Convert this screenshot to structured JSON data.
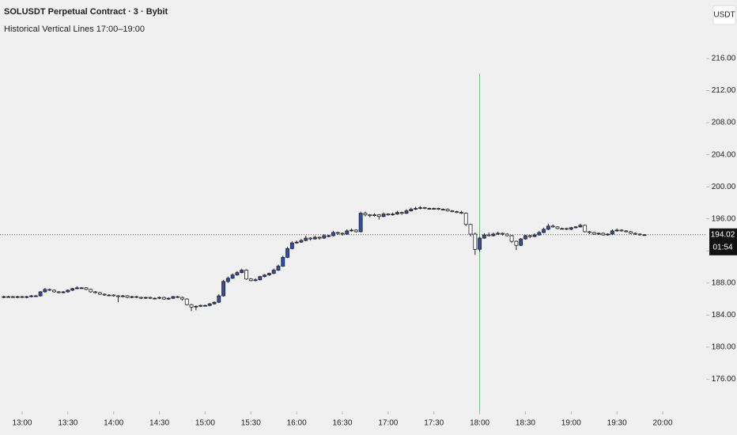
{
  "chart_data": {
    "type": "candlestick",
    "title": "SOLUSDT Perpetual Contract · 3 · Bybit",
    "subtitle": "Historical Vertical Lines 17:00–19:00",
    "currency": "USDT",
    "last_price": 194.02,
    "countdown": "01:54",
    "up_color": "#2e4eb5",
    "down_color": "#ffffff",
    "wick_color": "#222222",
    "vertical_line": {
      "x": 1080,
      "color": "#6dbb7a"
    },
    "xlim": [
      765.5,
      1228.5
    ],
    "xticks": [
      {
        "value": 780,
        "label": "13:00"
      },
      {
        "value": 810,
        "label": "13:30"
      },
      {
        "value": 840,
        "label": "14:00"
      },
      {
        "value": 870,
        "label": "14:30"
      },
      {
        "value": 900,
        "label": "15:00"
      },
      {
        "value": 930,
        "label": "15:30"
      },
      {
        "value": 960,
        "label": "16:00"
      },
      {
        "value": 990,
        "label": "16:30"
      },
      {
        "value": 1020,
        "label": "17:00"
      },
      {
        "value": 1050,
        "label": "17:30"
      },
      {
        "value": 1080,
        "label": "18:00"
      },
      {
        "value": 1110,
        "label": "18:30"
      },
      {
        "value": 1140,
        "label": "19:00"
      },
      {
        "value": 1170,
        "label": "19:30"
      },
      {
        "value": 1200,
        "label": "20:00"
      }
    ],
    "ylim": [
      172,
      223.3
    ],
    "yticks": [
      {
        "value": 176,
        "label": "176.00"
      },
      {
        "value": 180,
        "label": "180.00"
      },
      {
        "value": 184,
        "label": "184.00"
      },
      {
        "value": 188,
        "label": "188.00"
      },
      {
        "value": 192,
        "label": "192.00"
      },
      {
        "value": 196,
        "label": "196.00"
      },
      {
        "value": 200,
        "label": "200.00"
      },
      {
        "value": 204,
        "label": "204.00"
      },
      {
        "value": 208,
        "label": "208.00"
      },
      {
        "value": 212,
        "label": "212.00"
      },
      {
        "value": 216,
        "label": "216.00"
      }
    ],
    "x": [
      768,
      771,
      774,
      777,
      780,
      783,
      786,
      789,
      792,
      795,
      798,
      801,
      804,
      807,
      810,
      813,
      816,
      819,
      822,
      825,
      828,
      831,
      834,
      837,
      840,
      843,
      846,
      849,
      852,
      855,
      858,
      861,
      864,
      867,
      870,
      873,
      876,
      879,
      882,
      885,
      888,
      891,
      894,
      897,
      900,
      903,
      906,
      909,
      912,
      915,
      918,
      921,
      924,
      927,
      930,
      933,
      936,
      939,
      942,
      945,
      948,
      951,
      954,
      957,
      960,
      963,
      966,
      969,
      972,
      975,
      978,
      981,
      984,
      987,
      990,
      993,
      996,
      999,
      1002,
      1005,
      1008,
      1011,
      1014,
      1017,
      1020,
      1023,
      1026,
      1029,
      1032,
      1035,
      1038,
      1041,
      1044,
      1047,
      1050,
      1053,
      1056,
      1059,
      1062,
      1065,
      1068,
      1071,
      1074,
      1077,
      1080,
      1083,
      1086,
      1089,
      1092,
      1095,
      1098,
      1101,
      1104,
      1107,
      1110,
      1113,
      1116,
      1119,
      1122,
      1125,
      1128,
      1131,
      1134,
      1137,
      1140,
      1143,
      1146,
      1149,
      1152,
      1155,
      1158,
      1161,
      1164,
      1167,
      1170,
      1173,
      1176,
      1179,
      1182,
      1185,
      1188
    ],
    "ohlc": [
      [
        186.2,
        186.4,
        186.1,
        186.3
      ],
      [
        186.3,
        186.4,
        186.2,
        186.3
      ],
      [
        186.3,
        186.4,
        186.1,
        186.2
      ],
      [
        186.2,
        186.4,
        186.1,
        186.3
      ],
      [
        186.3,
        186.4,
        186.1,
        186.2
      ],
      [
        186.2,
        186.4,
        186.1,
        186.3
      ],
      [
        186.3,
        186.5,
        186.2,
        186.4
      ],
      [
        186.4,
        186.5,
        186.3,
        186.4
      ],
      [
        186.4,
        187.0,
        186.3,
        186.9
      ],
      [
        186.9,
        187.4,
        186.8,
        187.2
      ],
      [
        187.2,
        187.3,
        187.0,
        187.1
      ],
      [
        187.1,
        187.2,
        186.8,
        186.9
      ],
      [
        186.9,
        187.0,
        186.7,
        186.8
      ],
      [
        186.8,
        187.0,
        186.7,
        186.9
      ],
      [
        186.9,
        187.2,
        186.8,
        187.1
      ],
      [
        187.1,
        187.4,
        187.0,
        187.3
      ],
      [
        187.3,
        187.6,
        187.2,
        187.4
      ],
      [
        187.4,
        187.5,
        187.3,
        187.4
      ],
      [
        187.4,
        187.5,
        187.1,
        187.2
      ],
      [
        187.2,
        187.3,
        186.8,
        186.9
      ],
      [
        186.9,
        187.0,
        186.7,
        186.8
      ],
      [
        186.8,
        186.9,
        186.5,
        186.6
      ],
      [
        186.6,
        186.7,
        186.4,
        186.5
      ],
      [
        186.5,
        186.6,
        186.4,
        186.5
      ],
      [
        186.5,
        186.6,
        186.3,
        186.4
      ],
      [
        186.4,
        186.5,
        185.6,
        186.3
      ],
      [
        186.3,
        186.5,
        186.2,
        186.4
      ],
      [
        186.4,
        186.5,
        186.1,
        186.2
      ],
      [
        186.2,
        186.4,
        186.1,
        186.3
      ],
      [
        186.3,
        186.4,
        186.1,
        186.2
      ],
      [
        186.2,
        186.3,
        186.0,
        186.1
      ],
      [
        186.1,
        186.3,
        186.0,
        186.2
      ],
      [
        186.2,
        186.3,
        186.0,
        186.1
      ],
      [
        186.1,
        186.2,
        186.0,
        186.1
      ],
      [
        186.1,
        186.3,
        186.0,
        186.2
      ],
      [
        186.2,
        186.3,
        185.9,
        186.0
      ],
      [
        186.0,
        186.2,
        185.9,
        186.1
      ],
      [
        186.1,
        186.4,
        186.0,
        186.3
      ],
      [
        186.3,
        186.4,
        186.1,
        186.2
      ],
      [
        186.2,
        186.3,
        185.8,
        186.0
      ],
      [
        186.0,
        186.1,
        185.2,
        185.3
      ],
      [
        185.3,
        185.4,
        184.5,
        185.0
      ],
      [
        185.0,
        185.2,
        184.6,
        185.1
      ],
      [
        185.1,
        185.3,
        185.0,
        185.2
      ],
      [
        185.2,
        185.3,
        185.1,
        185.2
      ],
      [
        185.2,
        185.5,
        185.1,
        185.4
      ],
      [
        185.4,
        185.7,
        185.3,
        185.6
      ],
      [
        185.6,
        186.6,
        185.5,
        186.4
      ],
      [
        186.4,
        188.4,
        186.3,
        188.2
      ],
      [
        188.2,
        188.8,
        188.0,
        188.6
      ],
      [
        188.6,
        189.2,
        188.5,
        189.0
      ],
      [
        189.0,
        189.5,
        188.9,
        189.3
      ],
      [
        189.3,
        189.8,
        189.2,
        189.6
      ],
      [
        189.6,
        189.7,
        188.4,
        188.5
      ],
      [
        188.5,
        188.6,
        188.2,
        188.3
      ],
      [
        188.3,
        188.6,
        188.2,
        188.4
      ],
      [
        188.4,
        188.9,
        188.3,
        188.8
      ],
      [
        188.8,
        189.1,
        188.7,
        189.0
      ],
      [
        189.0,
        189.3,
        188.9,
        189.2
      ],
      [
        189.2,
        189.8,
        189.1,
        189.6
      ],
      [
        189.6,
        190.3,
        189.5,
        190.1
      ],
      [
        190.1,
        191.4,
        190.0,
        191.2
      ],
      [
        191.2,
        192.5,
        191.1,
        192.3
      ],
      [
        192.3,
        193.2,
        192.2,
        193.0
      ],
      [
        193.0,
        193.3,
        192.9,
        193.1
      ],
      [
        193.1,
        193.5,
        193.0,
        193.3
      ],
      [
        193.3,
        193.9,
        193.2,
        193.6
      ],
      [
        193.6,
        193.7,
        193.3,
        193.5
      ],
      [
        193.5,
        193.9,
        193.4,
        193.7
      ],
      [
        193.7,
        193.8,
        193.4,
        193.6
      ],
      [
        193.6,
        194.1,
        193.5,
        193.9
      ],
      [
        193.9,
        194.0,
        193.7,
        193.9
      ],
      [
        193.9,
        194.5,
        193.8,
        194.3
      ],
      [
        194.3,
        194.4,
        194.0,
        194.2
      ],
      [
        194.2,
        194.3,
        193.9,
        194.1
      ],
      [
        194.1,
        194.7,
        194.0,
        194.5
      ],
      [
        194.5,
        194.8,
        194.4,
        194.6
      ],
      [
        194.6,
        194.7,
        194.3,
        194.4
      ],
      [
        194.4,
        196.9,
        194.3,
        196.7
      ],
      [
        196.7,
        196.9,
        196.3,
        196.5
      ],
      [
        196.5,
        196.6,
        196.2,
        196.4
      ],
      [
        196.4,
        196.7,
        196.3,
        196.5
      ],
      [
        196.5,
        196.6,
        195.9,
        196.3
      ],
      [
        196.3,
        196.8,
        196.2,
        196.6
      ],
      [
        196.6,
        196.7,
        196.4,
        196.5
      ],
      [
        196.5,
        196.8,
        196.4,
        196.6
      ],
      [
        196.6,
        197.0,
        196.5,
        196.8
      ],
      [
        196.8,
        196.9,
        196.5,
        196.7
      ],
      [
        196.7,
        197.2,
        196.6,
        197.0
      ],
      [
        197.0,
        197.4,
        196.9,
        197.2
      ],
      [
        197.2,
        197.5,
        197.1,
        197.3
      ],
      [
        197.3,
        197.6,
        197.2,
        197.4
      ],
      [
        197.4,
        197.5,
        197.2,
        197.3
      ],
      [
        197.3,
        197.4,
        197.2,
        197.3
      ],
      [
        197.3,
        197.4,
        197.2,
        197.3
      ],
      [
        197.3,
        197.4,
        197.1,
        197.2
      ],
      [
        197.2,
        197.3,
        197.1,
        197.2
      ],
      [
        197.2,
        197.3,
        196.9,
        197.0
      ],
      [
        197.0,
        197.1,
        196.8,
        196.9
      ],
      [
        196.9,
        197.0,
        196.7,
        196.8
      ],
      [
        196.8,
        197.0,
        196.6,
        196.7
      ],
      [
        196.7,
        196.8,
        195.1,
        195.3
      ],
      [
        195.3,
        195.4,
        193.8,
        194.1
      ],
      [
        194.1,
        194.3,
        191.5,
        192.2
      ],
      [
        192.2,
        193.8,
        191.9,
        193.6
      ],
      [
        193.6,
        194.2,
        193.5,
        194.0
      ],
      [
        194.0,
        194.3,
        193.8,
        193.9
      ],
      [
        193.9,
        194.3,
        193.8,
        194.1
      ],
      [
        194.1,
        194.4,
        194.0,
        194.2
      ],
      [
        194.2,
        194.3,
        193.9,
        194.1
      ],
      [
        194.1,
        194.2,
        193.8,
        193.9
      ],
      [
        193.9,
        194.0,
        193.0,
        193.2
      ],
      [
        193.2,
        193.3,
        192.1,
        192.7
      ],
      [
        192.7,
        193.6,
        192.6,
        193.5
      ],
      [
        193.5,
        194.0,
        193.4,
        193.9
      ],
      [
        193.9,
        194.0,
        193.6,
        193.8
      ],
      [
        193.8,
        194.2,
        193.7,
        194.0
      ],
      [
        194.0,
        194.5,
        193.9,
        194.3
      ],
      [
        194.3,
        194.9,
        194.2,
        194.7
      ],
      [
        194.7,
        195.4,
        194.6,
        195.1
      ],
      [
        195.1,
        195.3,
        194.9,
        195.0
      ],
      [
        195.0,
        195.1,
        194.7,
        194.8
      ],
      [
        194.8,
        194.9,
        194.7,
        194.8
      ],
      [
        194.8,
        194.9,
        194.6,
        194.7
      ],
      [
        194.7,
        195.0,
        194.6,
        194.9
      ],
      [
        194.9,
        195.1,
        194.8,
        195.0
      ],
      [
        195.0,
        195.4,
        194.9,
        195.2
      ],
      [
        195.2,
        195.3,
        194.3,
        194.4
      ],
      [
        194.4,
        194.5,
        194.1,
        194.3
      ],
      [
        194.3,
        194.4,
        194.0,
        194.1
      ],
      [
        194.1,
        194.3,
        194.0,
        194.2
      ],
      [
        194.2,
        194.3,
        193.9,
        194.0
      ],
      [
        194.0,
        194.2,
        193.9,
        194.1
      ],
      [
        194.1,
        194.7,
        194.0,
        194.5
      ],
      [
        194.5,
        194.8,
        194.4,
        194.6
      ],
      [
        194.6,
        194.7,
        194.4,
        194.5
      ],
      [
        194.5,
        194.6,
        194.3,
        194.4
      ],
      [
        194.4,
        194.5,
        194.1,
        194.2
      ],
      [
        194.2,
        194.3,
        194.0,
        194.1
      ],
      [
        194.1,
        194.2,
        193.9,
        194.0
      ],
      [
        194.0,
        194.1,
        193.9,
        194.02
      ]
    ]
  }
}
